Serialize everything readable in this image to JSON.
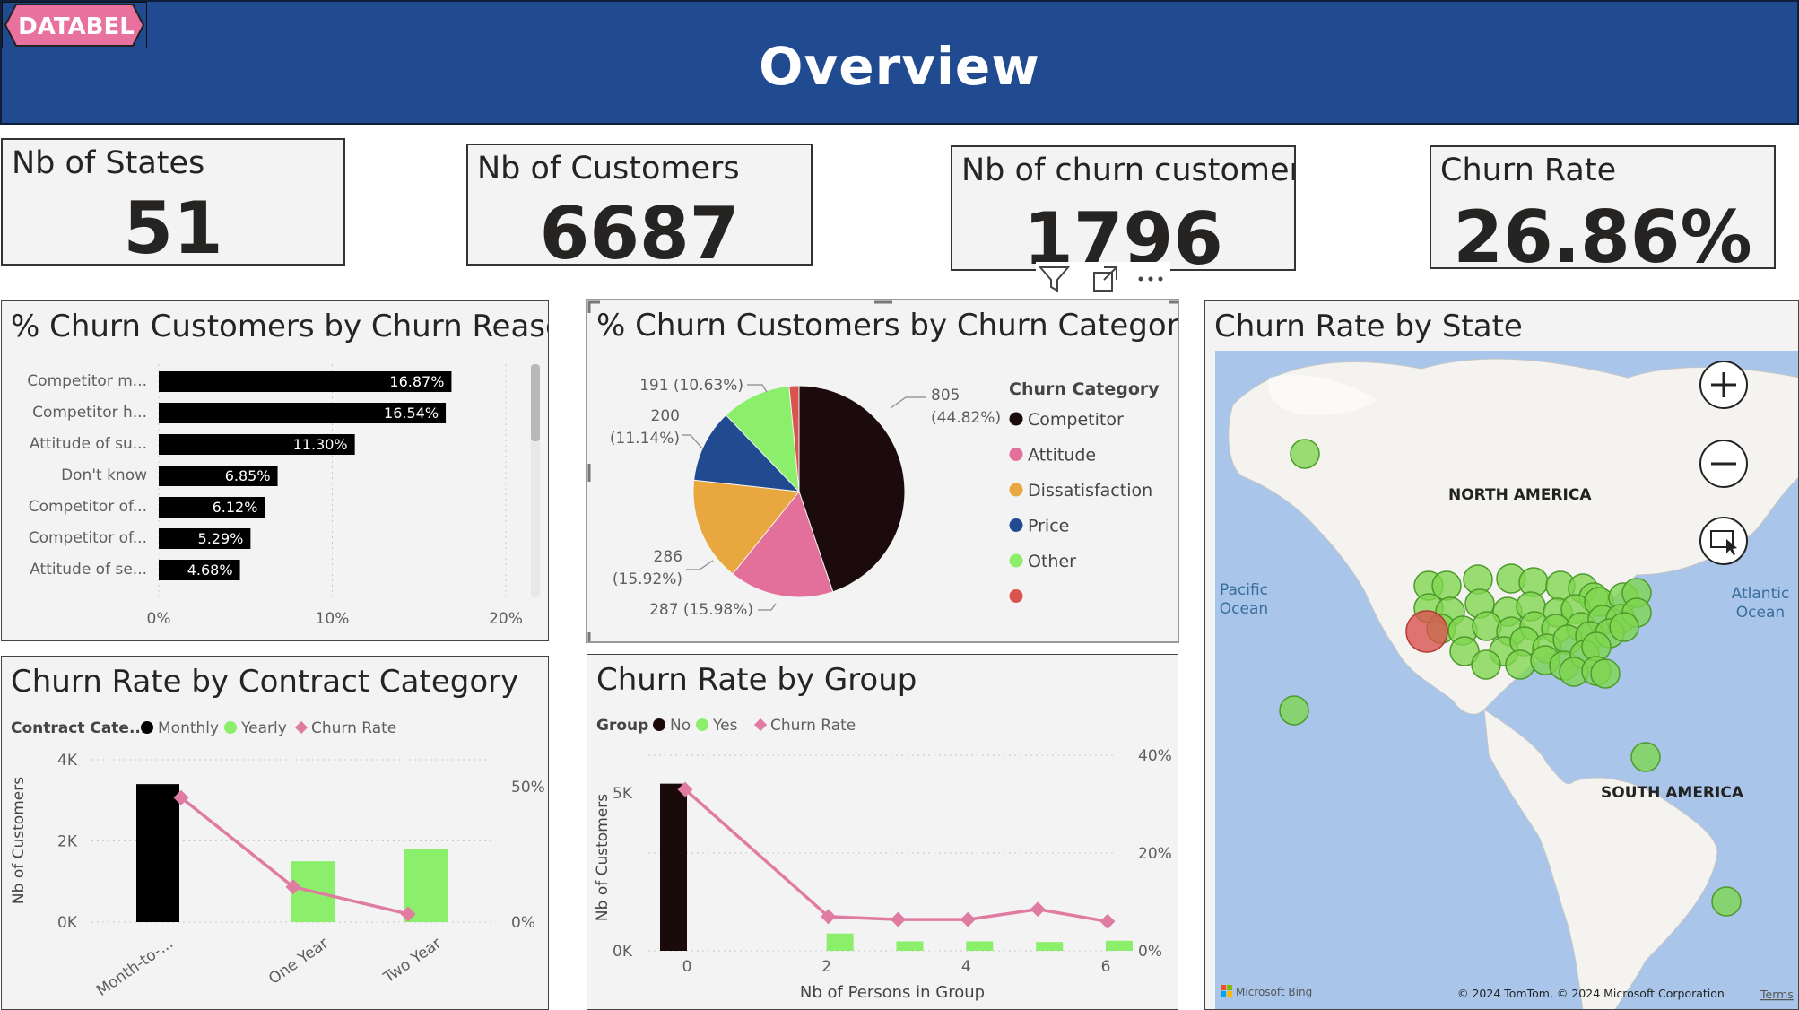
{
  "header": {
    "title": "Overview",
    "logo_text": "DATABEL"
  },
  "kpis": [
    {
      "title": "Nb of States",
      "value": "51"
    },
    {
      "title": "Nb of Customers",
      "value": "6687"
    },
    {
      "title": "Nb of churn customers",
      "value": "1796"
    },
    {
      "title": "Churn Rate",
      "value": "26.86%"
    }
  ],
  "colors": {
    "header": "#214b90",
    "logo": "#e9719d",
    "bar": "#000000",
    "line": "#e07ba2",
    "green": "#8cef6c",
    "no": "#1a0a0a"
  },
  "churn_reason": {
    "title": "% Churn Customers by Churn Reason",
    "rows": [
      {
        "label": "Competitor m...",
        "value": 16.87,
        "value_label": "16.87%"
      },
      {
        "label": "Competitor h...",
        "value": 16.54,
        "value_label": "16.54%"
      },
      {
        "label": "Attitude of su...",
        "value": 11.3,
        "value_label": "11.30%"
      },
      {
        "label": "Don't know",
        "value": 6.85,
        "value_label": "6.85%"
      },
      {
        "label": "Competitor of...",
        "value": 6.12,
        "value_label": "6.12%"
      },
      {
        "label": "Competitor of...",
        "value": 5.29,
        "value_label": "5.29%"
      },
      {
        "label": "Attitude of se...",
        "value": 4.68,
        "value_label": "4.68%"
      }
    ],
    "ticks": [
      "0%",
      "10%",
      "20%"
    ]
  },
  "churn_category": {
    "title": "% Churn Customers by Churn Category",
    "legend_title": "Churn Category",
    "slices": [
      {
        "name": "Competitor",
        "value": 805,
        "label1": "805",
        "label2": "(44.82%)",
        "color": "#1c0b0c"
      },
      {
        "name": "Attitude",
        "value": 287,
        "label1": "287 (15.98%)",
        "label2": "",
        "color": "#e2709a"
      },
      {
        "name": "Dissatisfaction",
        "value": 286,
        "label1": "286",
        "label2": "(15.92%)",
        "color": "#e9a83f"
      },
      {
        "name": "Price",
        "value": 200,
        "label1": "200",
        "label2": "(11.14%)",
        "color": "#214b90"
      },
      {
        "name": "Other",
        "value": 191,
        "label1": "191 (10.63%)",
        "label2": "",
        "color": "#8cef6c"
      },
      {
        "name": "",
        "value": 27,
        "label1": "",
        "label2": "",
        "color": "#d9534f"
      }
    ],
    "toolbar": {
      "filter": "filter-icon",
      "focus": "focus-mode-icon",
      "more": "more-options-icon"
    }
  },
  "churn_state": {
    "title": "Churn Rate by State",
    "labels": {
      "north_america": "NORTH AMERICA",
      "south_america": "SOUTH AMERICA",
      "pacific": "Pacific",
      "pacific2": "Ocean",
      "atlantic": "Atlantic",
      "atlantic2": "Ocean",
      "bing": "Microsoft Bing",
      "copyright": "© 2024 TomTom, © 2024 Microsoft Corporation",
      "terms": "Terms"
    }
  },
  "contract_chart": {
    "title": "Churn Rate by Contract Category",
    "legend_title": "Contract Cate...",
    "legend": [
      "Monthly",
      "Yearly",
      "Churn Rate"
    ],
    "ylabel": "Nb of Customers",
    "y_ticks": [
      "4K",
      "2K",
      "0K"
    ],
    "y2_ticks": [
      "50%",
      "0%"
    ],
    "categories": [
      "Month-to-...",
      "One Year",
      "Two Year"
    ]
  },
  "group_chart": {
    "title": "Churn Rate by Group",
    "legend_title": "Group",
    "legend": [
      "No",
      "Yes",
      "Churn Rate"
    ],
    "ylabel": "Nb of Customers",
    "xlabel": "Nb of Persons in Group",
    "y_ticks": [
      "5K",
      "0K"
    ],
    "y2_ticks": [
      "40%",
      "20%",
      "0%"
    ],
    "x_ticks": [
      "0",
      "2",
      "4",
      "6"
    ]
  },
  "chart_data": [
    {
      "type": "bar",
      "title": "% Churn Customers by Churn Reason",
      "categories": [
        "Competitor m...",
        "Competitor h...",
        "Attitude of su...",
        "Don't know",
        "Competitor of...",
        "Competitor of...",
        "Attitude of se..."
      ],
      "values": [
        16.87,
        16.54,
        11.3,
        6.85,
        6.12,
        5.29,
        4.68
      ],
      "xlim": [
        0,
        20
      ]
    },
    {
      "type": "pie",
      "title": "% Churn Customers by Churn Category",
      "categories": [
        "Competitor",
        "Attitude",
        "Dissatisfaction",
        "Price",
        "Other",
        ""
      ],
      "values": [
        805,
        287,
        286,
        200,
        191,
        27
      ]
    },
    {
      "type": "bar",
      "title": "Churn Rate by Contract Category",
      "categories": [
        "Month-to-...",
        "One Year",
        "Two Year"
      ],
      "series": [
        {
          "name": "Monthly",
          "values": [
            3400,
            null,
            null
          ]
        },
        {
          "name": "Yearly",
          "values": [
            null,
            1500,
            1800
          ]
        },
        {
          "name": "Churn Rate",
          "values": [
            46,
            13,
            3
          ],
          "axis": "secondary"
        }
      ],
      "ylabel": "Nb of Customers",
      "ylim": [
        0,
        4000
      ],
      "y2lim": [
        0,
        60
      ]
    },
    {
      "type": "bar",
      "title": "Churn Rate by Group",
      "x": [
        0,
        1,
        2,
        3,
        4,
        5,
        6
      ],
      "series": [
        {
          "name": "No",
          "values": [
            5300,
            0,
            0,
            0,
            0,
            0,
            0
          ]
        },
        {
          "name": "Yes",
          "values": [
            0,
            0,
            550,
            300,
            300,
            280,
            320
          ]
        },
        {
          "name": "Churn Rate",
          "values": [
            33,
            null,
            7,
            6.4,
            6.4,
            8.5,
            6
          ],
          "axis": "secondary"
        }
      ],
      "xlabel": "Nb of Persons in Group",
      "ylabel": "Nb of Customers",
      "ylim": [
        0,
        6200
      ],
      "y2lim": [
        0,
        40
      ]
    }
  ]
}
